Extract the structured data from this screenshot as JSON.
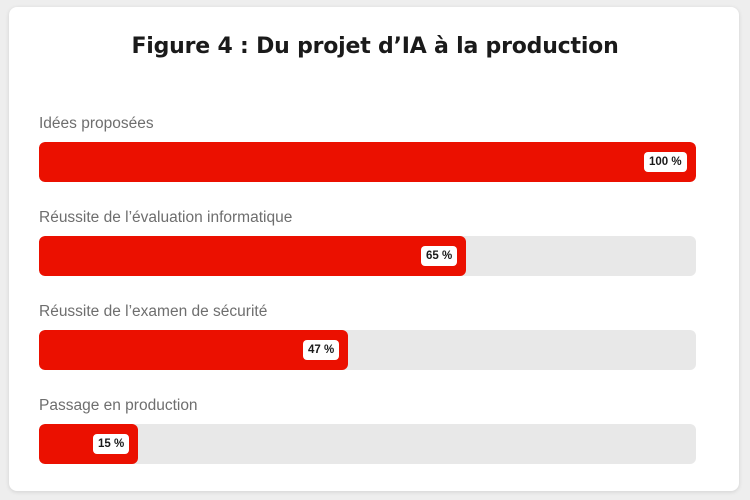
{
  "chart_data": {
    "type": "bar",
    "orientation": "horizontal",
    "title": "Figure 4 : Du projet d’IA à la production",
    "categories": [
      "Idées proposées",
      "Réussite de l’évaluation informatique",
      "Réussite de l’examen de sécurité",
      "Passage en production"
    ],
    "values": [
      100,
      65,
      47,
      15
    ],
    "value_labels": [
      "100 %",
      "65 %",
      "47 %",
      "15 %"
    ],
    "xlim": [
      0,
      100
    ],
    "grid": false,
    "legend": "none",
    "colors": {
      "bar": "#eb1000",
      "track": "#e8e8e8",
      "label_badge": "#ffffff"
    }
  }
}
